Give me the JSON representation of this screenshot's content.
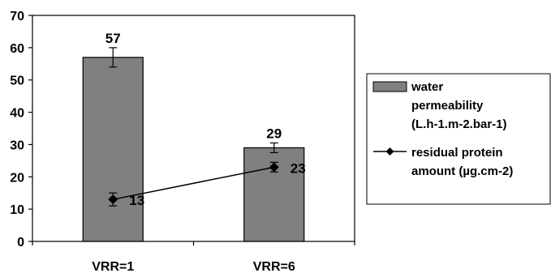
{
  "chart_data": {
    "type": "bar",
    "categories": [
      "VRR=1",
      "VRR=6"
    ],
    "ylim": [
      0,
      70
    ],
    "yticks": [
      0,
      10,
      20,
      30,
      40,
      50,
      60,
      70
    ],
    "grid": false,
    "legend_position": "right",
    "series": [
      {
        "name": "water permeability (L.h-1.m-2.bar-1)",
        "type": "bar",
        "values": [
          57,
          29
        ],
        "error": [
          3,
          1.5
        ],
        "data_labels": [
          "57",
          "29"
        ],
        "color": "#808080"
      },
      {
        "name": "residual protein amount (µg.cm-2)",
        "type": "line",
        "marker": "diamond",
        "values": [
          13,
          23
        ],
        "error": [
          2,
          1.5
        ],
        "data_labels": [
          "13",
          "23"
        ],
        "color": "#000000"
      }
    ]
  },
  "legend": {
    "items": [
      {
        "lines": [
          "water",
          "permeability",
          "(L.h-1.m-2.bar-1)"
        ]
      },
      {
        "lines": [
          "residual protein",
          "amount (µg.cm-2)"
        ]
      }
    ]
  }
}
